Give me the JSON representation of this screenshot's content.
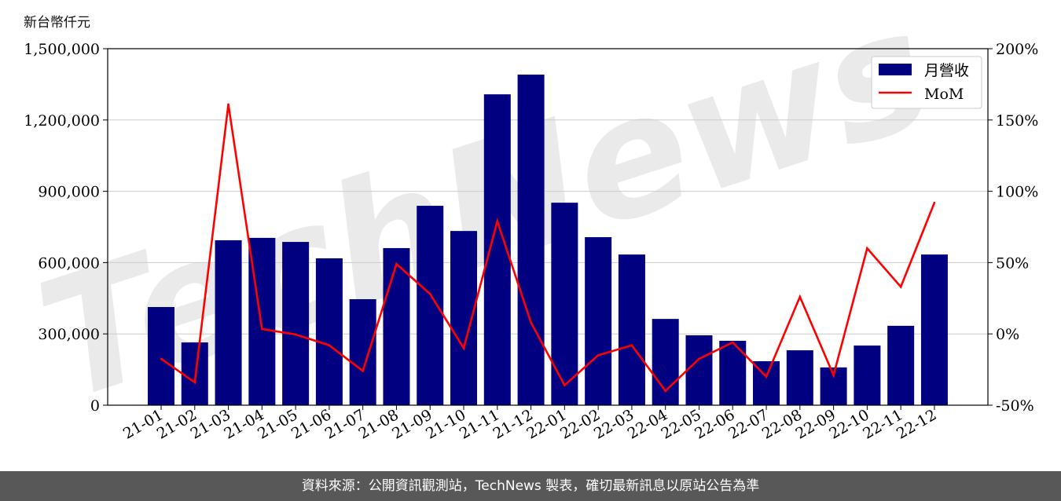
{
  "chart_data": {
    "type": "bar+line",
    "ylabel_left": "新台幣仟元",
    "categories": [
      "21-01",
      "21-02",
      "21-03",
      "21-04",
      "21-05",
      "21-06",
      "21-07",
      "21-08",
      "21-09",
      "21-10",
      "21-11",
      "21-12",
      "22-01",
      "22-02",
      "22-03",
      "22-04",
      "22-05",
      "22-06",
      "22-07",
      "22-08",
      "22-09",
      "22-10",
      "22-11",
      "22-12"
    ],
    "series": [
      {
        "name": "月營收",
        "type": "bar",
        "axis": "left",
        "color": "#000080",
        "values": [
          413000,
          264000,
          694000,
          704000,
          687000,
          618000,
          446000,
          661000,
          839000,
          733000,
          1308000,
          1391000,
          852000,
          707000,
          634000,
          363000,
          294000,
          271000,
          185000,
          231000,
          159000,
          251000,
          334000,
          634000
        ]
      },
      {
        "name": "MoM",
        "type": "line",
        "axis": "right",
        "color": "#ff0000",
        "values": [
          -17.5,
          -34,
          161,
          3.4,
          -0.4,
          -8,
          -26,
          49,
          28,
          -10,
          79,
          8,
          -36,
          -15,
          -8,
          -40,
          -17.5,
          -6,
          -30,
          26,
          -29,
          60,
          33,
          92
        ]
      }
    ],
    "ylim_left": [
      0,
      1500000
    ],
    "yticks_left": [
      "0",
      "300,000",
      "600,000",
      "900,000",
      "1,200,000",
      "1,500,000"
    ],
    "ylim_right": [
      -50,
      200
    ],
    "yticks_right": [
      "-50%",
      "0%",
      "50%",
      "100%",
      "150%",
      "200%"
    ],
    "grid": "horizontal",
    "legend_placement": "top-right",
    "watermark": "TechNews"
  },
  "footer": {
    "source": "資料來源：公開資訊觀測站，TechNews 製表，確切最新訊息以原站公告為準"
  }
}
